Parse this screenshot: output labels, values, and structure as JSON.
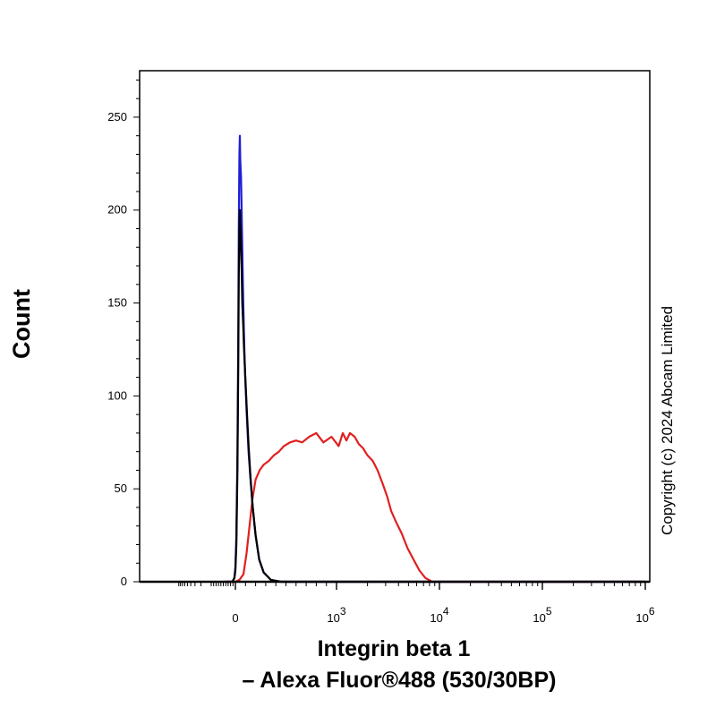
{
  "chart_data": {
    "type": "line",
    "xlabel_line1": "Integrin beta 1",
    "xlabel_line2": "– Alexa Fluor®488 (530/30BP)",
    "ylabel": "Count",
    "copyright": "Copyright (c) 2024 Abcam Limited",
    "x_scale": "biexponential",
    "ylim": [
      0,
      275
    ],
    "y_ticks": [
      0,
      50,
      100,
      150,
      200,
      250
    ],
    "x_ticks": [
      {
        "value": 0,
        "base": "0",
        "exp": ""
      },
      {
        "value": 1000,
        "base": "10",
        "exp": "3"
      },
      {
        "value": 10000,
        "base": "10",
        "exp": "4"
      },
      {
        "value": 100000,
        "base": "10",
        "exp": "5"
      },
      {
        "value": 1000000,
        "base": "10",
        "exp": "6"
      }
    ],
    "series": [
      {
        "color": "#e02020",
        "points": [
          [
            -100,
            0
          ],
          [
            0,
            0
          ],
          [
            40,
            1
          ],
          [
            80,
            4
          ],
          [
            110,
            15
          ],
          [
            140,
            30
          ],
          [
            170,
            45
          ],
          [
            200,
            55
          ],
          [
            240,
            60
          ],
          [
            280,
            63
          ],
          [
            330,
            65
          ],
          [
            380,
            68
          ],
          [
            430,
            70
          ],
          [
            480,
            73
          ],
          [
            540,
            75
          ],
          [
            600,
            76
          ],
          [
            660,
            75
          ],
          [
            730,
            78
          ],
          [
            800,
            80
          ],
          [
            870,
            75
          ],
          [
            950,
            78
          ],
          [
            1050,
            73
          ],
          [
            1150,
            80
          ],
          [
            1250,
            76
          ],
          [
            1350,
            80
          ],
          [
            1500,
            78
          ],
          [
            1650,
            74
          ],
          [
            1800,
            72
          ],
          [
            2000,
            68
          ],
          [
            2250,
            65
          ],
          [
            2500,
            60
          ],
          [
            2800,
            53
          ],
          [
            3100,
            46
          ],
          [
            3400,
            38
          ],
          [
            3800,
            32
          ],
          [
            4300,
            26
          ],
          [
            4900,
            18
          ],
          [
            5600,
            12
          ],
          [
            6400,
            6
          ],
          [
            7300,
            2
          ],
          [
            8500,
            0
          ],
          [
            12000,
            0
          ],
          [
            1000000,
            0
          ]
        ]
      },
      {
        "color": "#1f1fd6",
        "points": [
          [
            -100,
            0
          ],
          [
            -30,
            0
          ],
          [
            -10,
            2
          ],
          [
            0,
            8
          ],
          [
            10,
            25
          ],
          [
            20,
            70
          ],
          [
            28,
            130
          ],
          [
            34,
            190
          ],
          [
            40,
            230
          ],
          [
            44,
            240
          ],
          [
            48,
            228
          ],
          [
            52,
            222
          ],
          [
            56,
            218
          ],
          [
            60,
            205
          ],
          [
            66,
            185
          ],
          [
            74,
            160
          ],
          [
            84,
            135
          ],
          [
            96,
            112
          ],
          [
            112,
            90
          ],
          [
            130,
            70
          ],
          [
            150,
            55
          ],
          [
            172,
            40
          ],
          [
            200,
            25
          ],
          [
            235,
            12
          ],
          [
            280,
            5
          ],
          [
            350,
            1
          ],
          [
            450,
            0
          ],
          [
            1000000,
            0
          ]
        ]
      },
      {
        "color": "#000000",
        "points": [
          [
            -100,
            0
          ],
          [
            -30,
            0
          ],
          [
            -10,
            2
          ],
          [
            0,
            6
          ],
          [
            10,
            20
          ],
          [
            20,
            60
          ],
          [
            28,
            115
          ],
          [
            34,
            165
          ],
          [
            40,
            190
          ],
          [
            44,
            200
          ],
          [
            48,
            193
          ],
          [
            52,
            188
          ],
          [
            56,
            180
          ],
          [
            62,
            168
          ],
          [
            68,
            150
          ],
          [
            76,
            140
          ],
          [
            86,
            125
          ],
          [
            100,
            108
          ],
          [
            115,
            90
          ],
          [
            132,
            72
          ],
          [
            150,
            56
          ],
          [
            172,
            40
          ],
          [
            200,
            25
          ],
          [
            235,
            12
          ],
          [
            280,
            5
          ],
          [
            350,
            1
          ],
          [
            450,
            0
          ],
          [
            1000000,
            0
          ]
        ]
      }
    ]
  }
}
